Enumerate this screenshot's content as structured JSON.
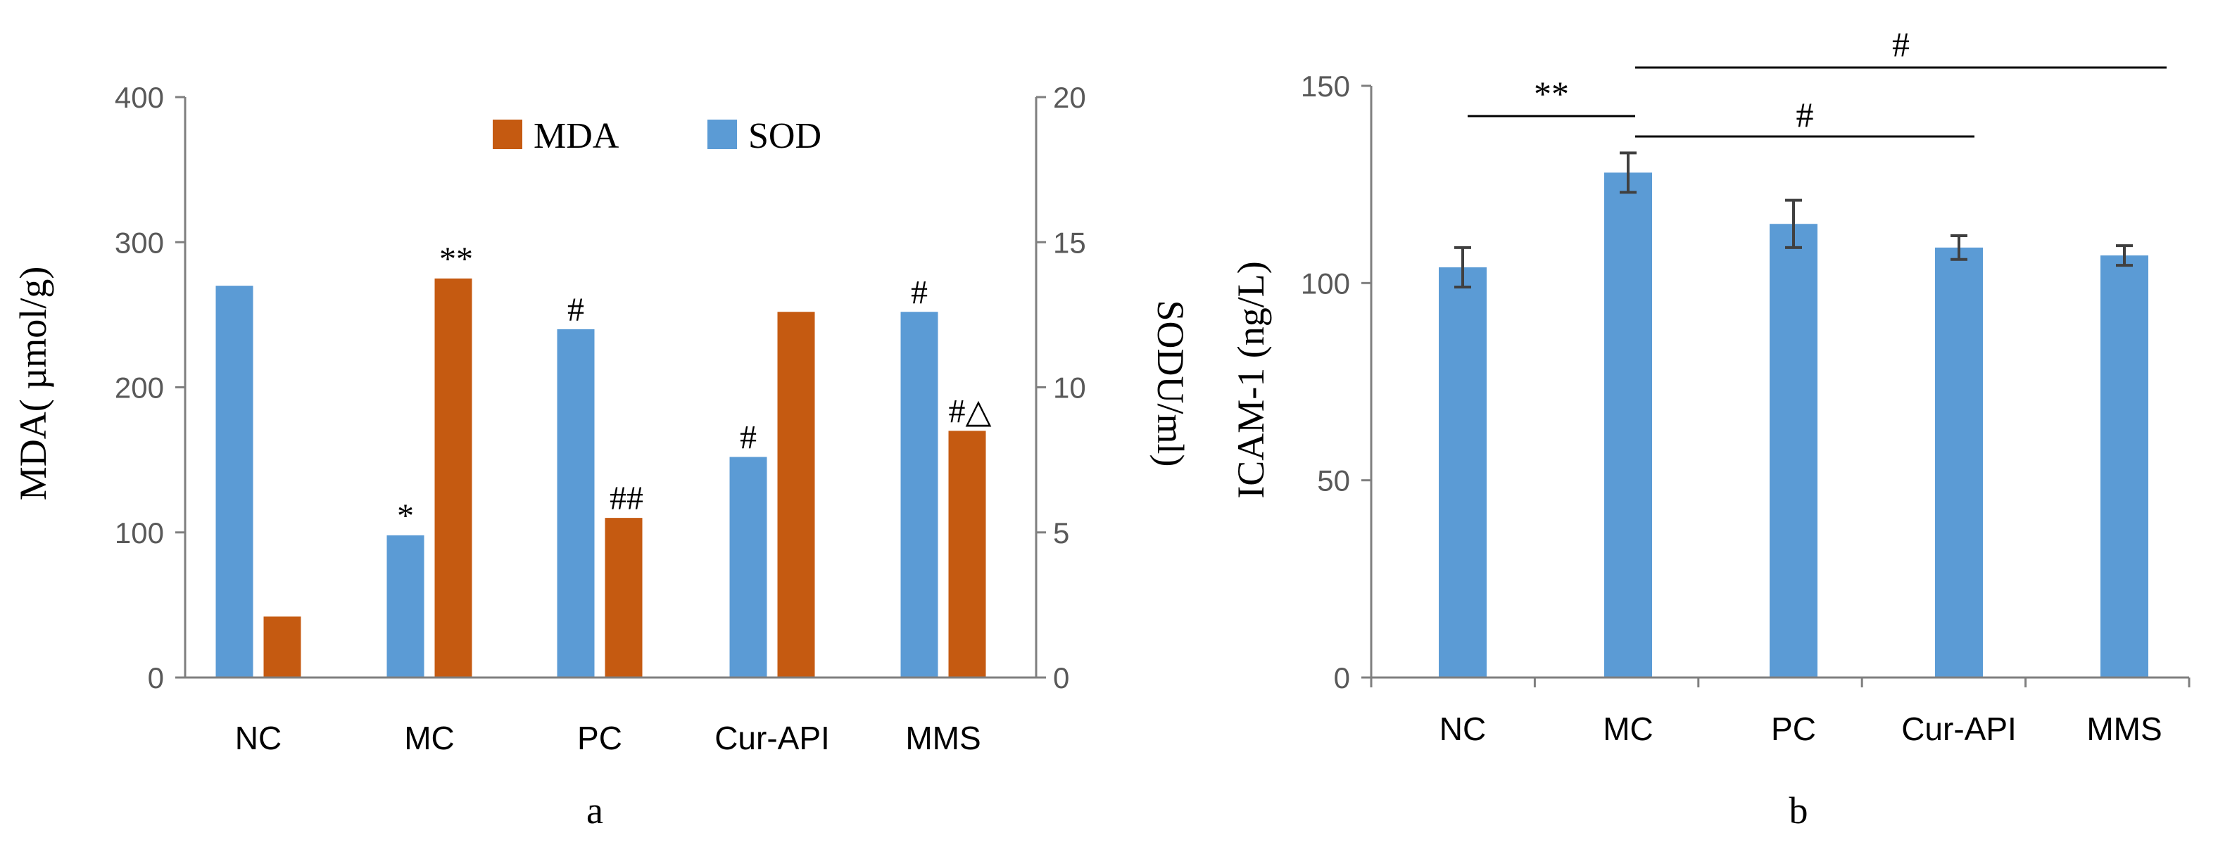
{
  "chart_data": [
    {
      "type": "bar",
      "panel_label": "a",
      "categories": [
        "NC",
        "MC",
        "PC",
        "Cur-API",
        "MMS"
      ],
      "series": [
        {
          "name": "SOD",
          "axis": "right",
          "color": "#5b9bd5",
          "values": [
            13.5,
            4.9,
            12.0,
            7.6,
            12.6
          ],
          "annotations": [
            "",
            "*",
            "#",
            "#",
            "#"
          ]
        },
        {
          "name": "MDA",
          "axis": "left",
          "color": "#c55a11",
          "values": [
            42,
            275,
            110,
            252,
            170
          ],
          "annotations": [
            "",
            "**",
            "##",
            "",
            "#△"
          ]
        }
      ],
      "legend": {
        "position": "top-center",
        "entries": [
          "MDA",
          "SOD"
        ]
      },
      "ylabel": "MDA( µmol/g)",
      "ylim": [
        0,
        400
      ],
      "yticks": [
        0,
        100,
        200,
        300,
        400
      ],
      "y2label": "SODU/ml)",
      "y2lim": [
        0,
        20
      ],
      "y2ticks": [
        0,
        5,
        10,
        15,
        20
      ],
      "xlabel": "",
      "grid": false
    },
    {
      "type": "bar",
      "panel_label": "b",
      "categories": [
        "NC",
        "MC",
        "PC",
        "Cur-API",
        "MMS"
      ],
      "series": [
        {
          "name": "ICAM-1",
          "color": "#5b9bd5",
          "values": [
            104,
            128,
            115,
            109,
            107
          ],
          "errors": [
            5,
            5,
            6,
            3,
            2.5
          ]
        }
      ],
      "ylabel": "ICAM-1 (ng/L)",
      "ylim": [
        0,
        150
      ],
      "yticks": [
        0,
        50,
        100,
        150
      ],
      "xlabel": "",
      "grid": false,
      "significance": [
        {
          "from": 0,
          "to": 1,
          "label": "**"
        },
        {
          "from": 1,
          "to": 3,
          "label": "#"
        },
        {
          "from": 1,
          "to": 4,
          "label": "#"
        }
      ]
    }
  ]
}
